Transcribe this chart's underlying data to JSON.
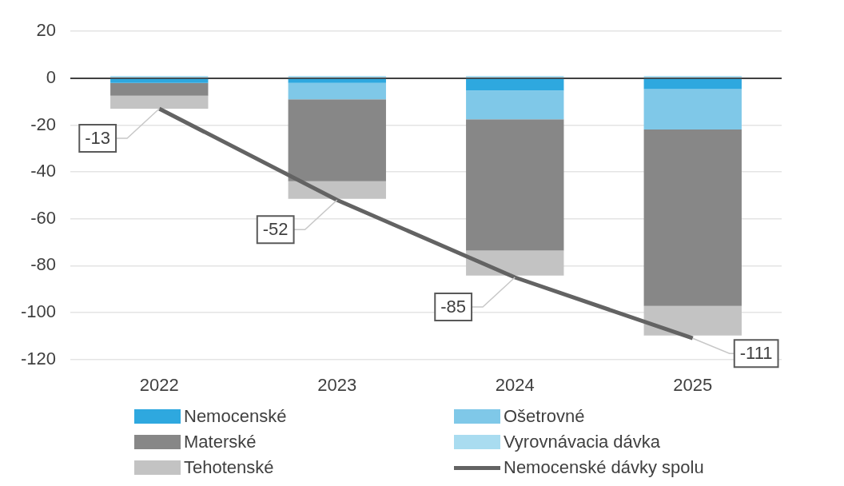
{
  "chart_data": {
    "type": "bar",
    "stacked": true,
    "categories": [
      "2022",
      "2023",
      "2024",
      "2025"
    ],
    "series": [
      {
        "name": "Nemocenské",
        "color": "#2ea8df",
        "values": [
          -2,
          -2,
          -5.3,
          -4.7
        ]
      },
      {
        "name": "Ošetrovné",
        "color": "#7fc8e8",
        "values": [
          0,
          -7,
          -12.2,
          -17.2
        ]
      },
      {
        "name": "Materské",
        "color": "#878787",
        "values": [
          -5.5,
          -35,
          -56.1,
          -75.3
        ]
      },
      {
        "name": "Vyrovnávacia dávka",
        "color": "#a9dcf0",
        "values": [
          1,
          1,
          1,
          1
        ]
      },
      {
        "name": "Tehotenské",
        "color": "#c3c3c3",
        "values": [
          -5.5,
          -7.5,
          -10.6,
          -12.6
        ]
      },
      {
        "name": "Nemocenské dávky spolu",
        "type": "line",
        "color": "#636363",
        "values": [
          -13,
          -52,
          -85,
          -111
        ],
        "data_labels": true,
        "marker": "none"
      }
    ],
    "ylim": [
      -120,
      20
    ],
    "yticks": [
      -120,
      -100,
      -80,
      -60,
      -40,
      -20,
      0,
      20
    ],
    "grid": "y",
    "legend": "bottom"
  }
}
